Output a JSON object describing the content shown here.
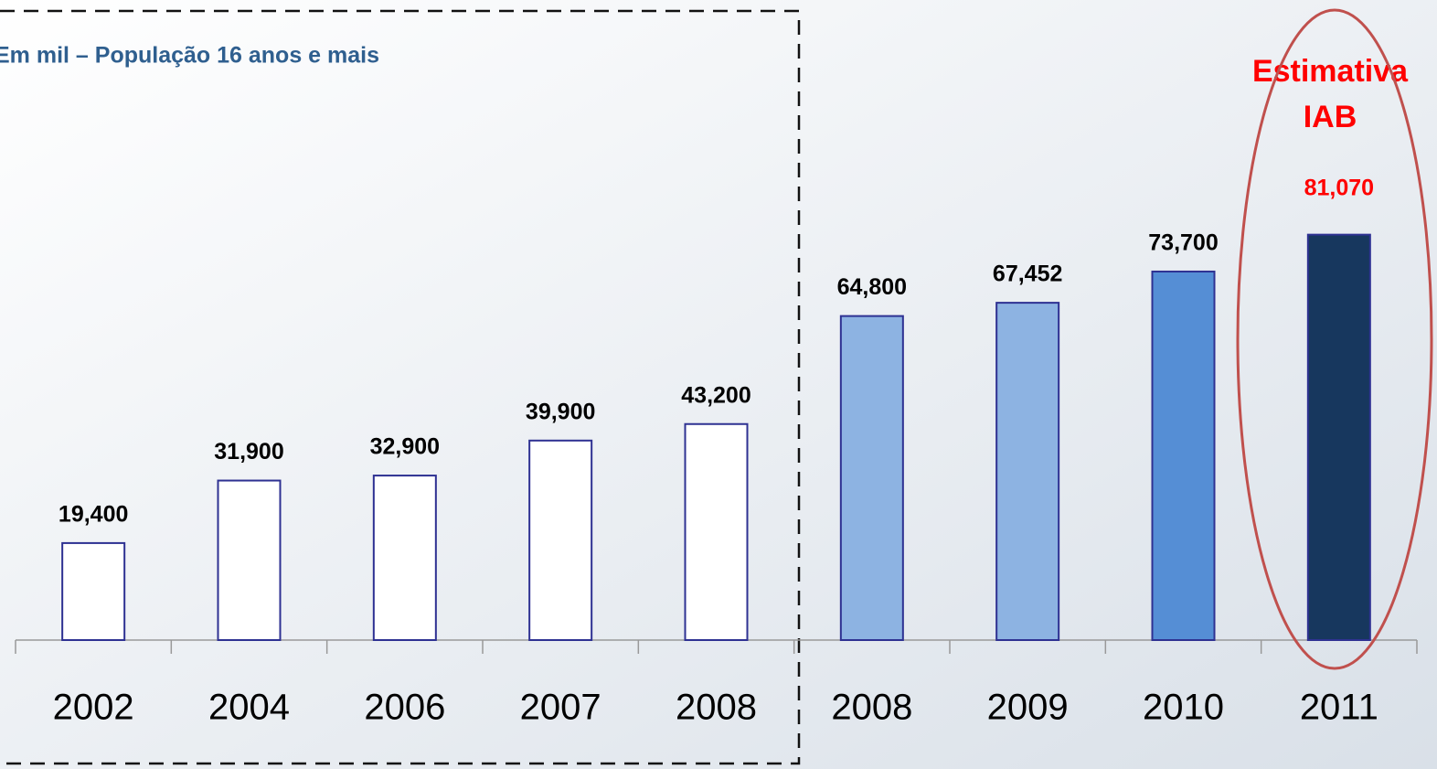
{
  "chart_data": {
    "type": "bar",
    "subtitle": "Em mil – População 16 anos e mais",
    "annotation_lines": [
      "Estimativa",
      "IAB"
    ],
    "categories": [
      "2002",
      "2004",
      "2006",
      "2007",
      "2008",
      "2008",
      "2009",
      "2010",
      "2011"
    ],
    "values": [
      19400,
      31900,
      32900,
      39900,
      43200,
      64800,
      67452,
      73700,
      81070
    ],
    "value_labels": [
      "19,400",
      "31,900",
      "32,900",
      "39,900",
      "43,200",
      "64,800",
      "67,452",
      "73,700",
      "81,070"
    ],
    "colors": [
      "#ffffff",
      "#ffffff",
      "#ffffff",
      "#ffffff",
      "#ffffff",
      "#8db3e2",
      "#8db3e2",
      "#558ed5",
      "#17375e"
    ],
    "border_color": "#2e3192",
    "label_colors": [
      "#000000",
      "#000000",
      "#000000",
      "#000000",
      "#000000",
      "#000000",
      "#000000",
      "#000000",
      "#ff0000"
    ],
    "ylim": [
      0,
      128000
    ],
    "grid": false
  }
}
